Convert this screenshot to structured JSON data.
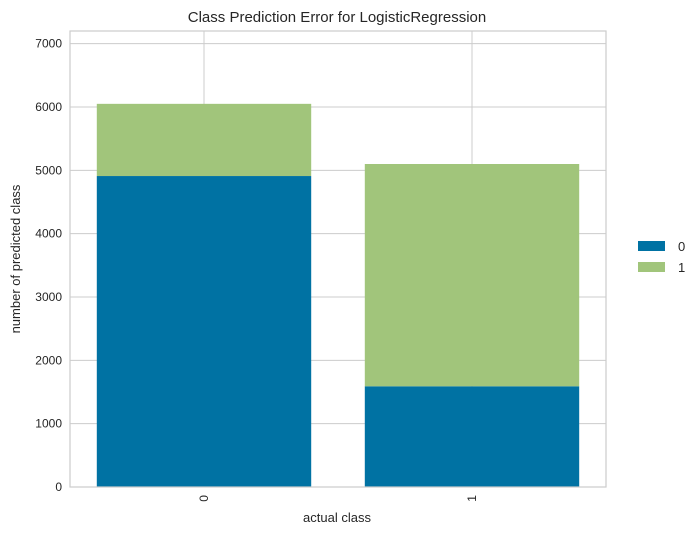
{
  "chart_data": {
    "type": "bar",
    "stacked": true,
    "title": "Class Prediction Error for LogisticRegression",
    "xlabel": "actual class",
    "ylabel": "number of predicted class",
    "categories": [
      "0",
      "1"
    ],
    "series": [
      {
        "name": "0",
        "values": [
          4910,
          1590
        ],
        "color": "#0072a3"
      },
      {
        "name": "1",
        "values": [
          1140,
          3510
        ],
        "color": "#a1c57b"
      }
    ],
    "ylim": [
      0,
      7200
    ],
    "yticks": [
      0,
      1000,
      2000,
      3000,
      4000,
      5000,
      6000,
      7000
    ],
    "ytick_labels": [
      "0",
      "1000",
      "2000",
      "3000",
      "4000",
      "5000",
      "6000",
      "7000"
    ],
    "grid": true,
    "legend_position": "right",
    "legend": [
      "0",
      "1"
    ]
  }
}
